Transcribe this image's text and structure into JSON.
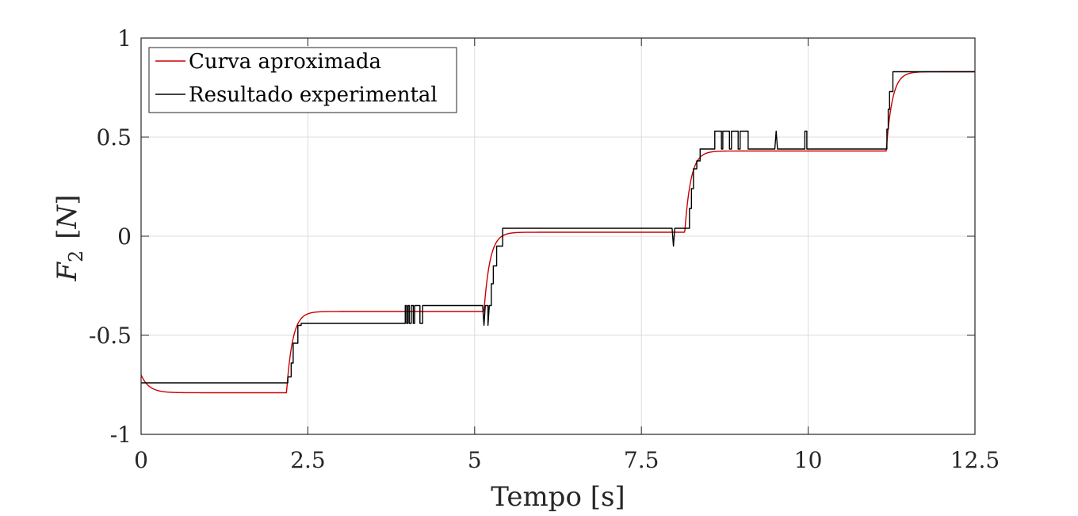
{
  "chart_data": {
    "type": "line",
    "title": "",
    "xlabel": "Tempo  [s]",
    "ylabel": {
      "symbol": "F",
      "subscript": "2",
      "unit_open": "[",
      "unit": "N",
      "unit_close": "]"
    },
    "xlim": [
      0,
      12.5
    ],
    "ylim": [
      -1,
      1
    ],
    "xticks": [
      0,
      2.5,
      5,
      7.5,
      10,
      12.5
    ],
    "xtick_labels": [
      "0",
      "2.5",
      "5",
      "7.5",
      "10",
      "12.5"
    ],
    "yticks": [
      -1,
      -0.5,
      0,
      0.5,
      1
    ],
    "ytick_labels": [
      "-1",
      "-0.5",
      "0",
      "0.5",
      "1"
    ],
    "grid": true,
    "legend_position": "top-left",
    "series": [
      {
        "name": "Curva aproximada",
        "color": "#cc0000",
        "kind": "smooth-steps",
        "start": -0.7,
        "initial": -0.79,
        "steps": [
          {
            "t": 2.18,
            "level": -0.38
          },
          {
            "t": 5.14,
            "level": 0.02
          },
          {
            "t": 8.15,
            "level": 0.43
          },
          {
            "t": 11.17,
            "level": 0.83
          }
        ],
        "tau": 0.09
      },
      {
        "name": "Resultado experimental",
        "color": "#000000",
        "kind": "points",
        "points": [
          [
            0,
            -0.74
          ],
          [
            2.2,
            -0.74
          ],
          [
            2.2,
            -0.71
          ],
          [
            2.25,
            -0.71
          ],
          [
            2.25,
            -0.64
          ],
          [
            2.28,
            -0.64
          ],
          [
            2.28,
            -0.54
          ],
          [
            2.35,
            -0.54
          ],
          [
            2.35,
            -0.45
          ],
          [
            2.4,
            -0.45
          ],
          [
            2.4,
            -0.44
          ],
          [
            3.96,
            -0.44
          ],
          [
            3.96,
            -0.35
          ],
          [
            3.98,
            -0.35
          ],
          [
            3.98,
            -0.44
          ],
          [
            4.0,
            -0.44
          ],
          [
            4.0,
            -0.35
          ],
          [
            4.02,
            -0.35
          ],
          [
            4.02,
            -0.44
          ],
          [
            4.05,
            -0.44
          ],
          [
            4.05,
            -0.35
          ],
          [
            4.08,
            -0.35
          ],
          [
            4.08,
            -0.44
          ],
          [
            4.1,
            -0.44
          ],
          [
            4.1,
            -0.35
          ],
          [
            4.18,
            -0.35
          ],
          [
            4.18,
            -0.44
          ],
          [
            4.22,
            -0.44
          ],
          [
            4.22,
            -0.35
          ],
          [
            5.12,
            -0.35
          ],
          [
            5.14,
            -0.45
          ],
          [
            5.16,
            -0.35
          ],
          [
            5.2,
            -0.35
          ],
          [
            5.2,
            -0.45
          ],
          [
            5.22,
            -0.35
          ],
          [
            5.25,
            -0.35
          ],
          [
            5.25,
            -0.24
          ],
          [
            5.28,
            -0.24
          ],
          [
            5.28,
            -0.15
          ],
          [
            5.33,
            -0.15
          ],
          [
            5.33,
            -0.05
          ],
          [
            5.42,
            -0.05
          ],
          [
            5.42,
            0.04
          ],
          [
            7.96,
            0.04
          ],
          [
            7.98,
            -0.05
          ],
          [
            8.0,
            0.04
          ],
          [
            8.18,
            0.04
          ],
          [
            8.18,
            0.04
          ],
          [
            8.22,
            0.04
          ],
          [
            8.22,
            0.14
          ],
          [
            8.25,
            0.14
          ],
          [
            8.25,
            0.24
          ],
          [
            8.28,
            0.24
          ],
          [
            8.28,
            0.34
          ],
          [
            8.33,
            0.34
          ],
          [
            8.33,
            0.38
          ],
          [
            8.38,
            0.38
          ],
          [
            8.38,
            0.44
          ],
          [
            8.6,
            0.44
          ],
          [
            8.6,
            0.53
          ],
          [
            8.7,
            0.53
          ],
          [
            8.7,
            0.44
          ],
          [
            8.72,
            0.44
          ],
          [
            8.72,
            0.53
          ],
          [
            8.82,
            0.53
          ],
          [
            8.82,
            0.44
          ],
          [
            8.85,
            0.44
          ],
          [
            8.85,
            0.53
          ],
          [
            8.95,
            0.53
          ],
          [
            8.95,
            0.44
          ],
          [
            8.98,
            0.44
          ],
          [
            8.98,
            0.53
          ],
          [
            9.1,
            0.53
          ],
          [
            9.1,
            0.44
          ],
          [
            9.5,
            0.44
          ],
          [
            9.52,
            0.53
          ],
          [
            9.54,
            0.44
          ],
          [
            9.95,
            0.44
          ],
          [
            9.95,
            0.53
          ],
          [
            9.98,
            0.53
          ],
          [
            9.98,
            0.44
          ],
          [
            11.18,
            0.44
          ],
          [
            11.18,
            0.54
          ],
          [
            11.2,
            0.54
          ],
          [
            11.2,
            0.64
          ],
          [
            11.22,
            0.64
          ],
          [
            11.22,
            0.73
          ],
          [
            11.27,
            0.73
          ],
          [
            11.27,
            0.83
          ],
          [
            12.5,
            0.83
          ]
        ]
      }
    ]
  }
}
